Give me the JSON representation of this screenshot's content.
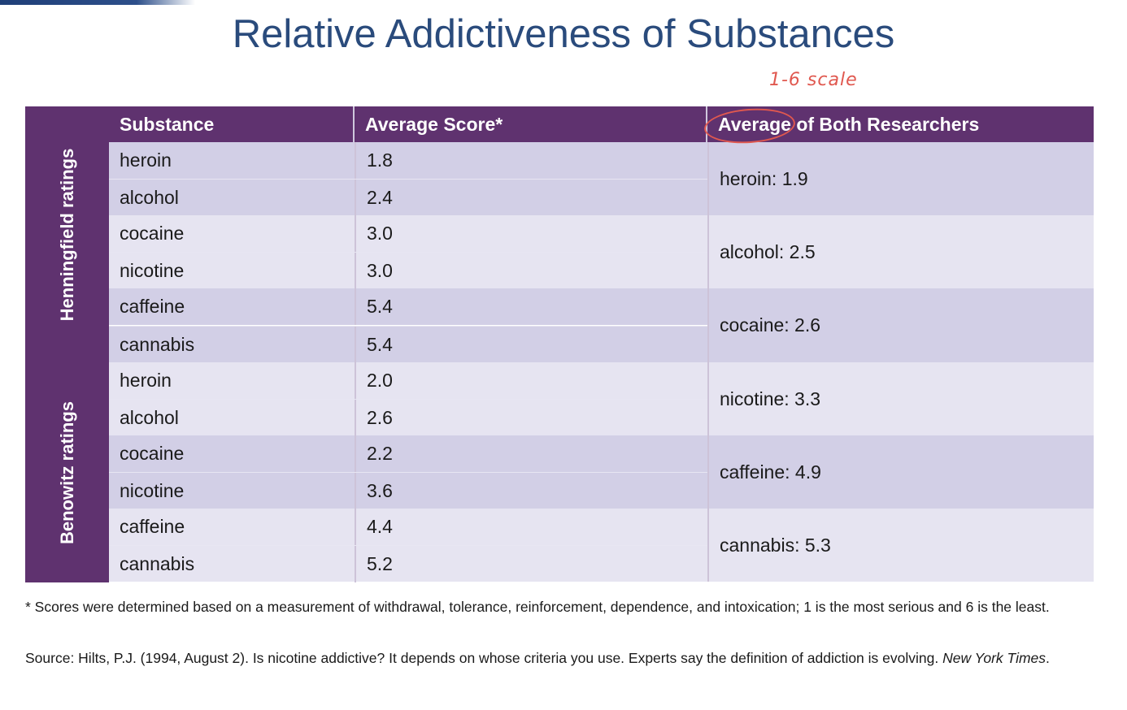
{
  "slide": {
    "title": "Relative Addictiveness of Substances",
    "annotation": "1-6 scale"
  },
  "table": {
    "headers": [
      "Substance",
      "Average Score*",
      "Average of Both Researchers"
    ],
    "groups": [
      {
        "label": "Henningfield ratings",
        "rows": [
          {
            "substance": "heroin",
            "score": "1.8"
          },
          {
            "substance": "alcohol",
            "score": "2.4"
          },
          {
            "substance": "cocaine",
            "score": "3.0"
          },
          {
            "substance": "nicotine",
            "score": "3.0"
          },
          {
            "substance": "caffeine",
            "score": "5.4"
          },
          {
            "substance": "cannabis",
            "score": "5.4"
          }
        ]
      },
      {
        "label": "Benowitz ratings",
        "rows": [
          {
            "substance": "heroin",
            "score": "2.0"
          },
          {
            "substance": "alcohol",
            "score": "2.6"
          },
          {
            "substance": "cocaine",
            "score": "2.2"
          },
          {
            "substance": "nicotine",
            "score": "3.6"
          },
          {
            "substance": "caffeine",
            "score": "4.4"
          },
          {
            "substance": "cannabis",
            "score": "5.2"
          }
        ]
      }
    ],
    "averages": [
      "heroin: 1.9",
      "alcohol: 2.5",
      "cocaine: 2.6",
      "nicotine: 3.3",
      "caffeine: 4.9",
      "cannabis: 5.3"
    ]
  },
  "footnote": "* Scores were determined based on a measurement of withdrawal, tolerance, reinforcement, dependence, and intoxication; 1  is the most serious and 6 is the least.",
  "source": {
    "text": "Source: Hilts, P.J. (1994, August 2). Is nicotine addictive? It depends on whose criteria you use. Experts say the definition of addiction is evolving. ",
    "publication": "New York Times",
    "end": "."
  },
  "colors": {
    "header_purple": "#5f326f",
    "title_blue": "#2a4b7c",
    "row_dark": "#d2cfe6",
    "row_light": "#e6e4f1",
    "annotation_red": "#e0584f"
  }
}
